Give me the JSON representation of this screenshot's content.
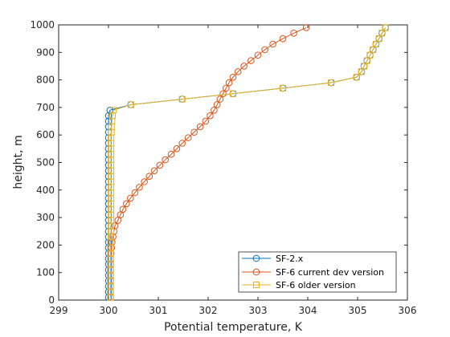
{
  "chart_data": {
    "type": "line",
    "title": "",
    "xlabel": "Potential temperature, K",
    "ylabel": "height, m",
    "xlim": [
      299,
      306
    ],
    "ylim": [
      0,
      1000
    ],
    "xticks": [
      299,
      300,
      301,
      302,
      303,
      304,
      305,
      306
    ],
    "yticks": [
      0,
      100,
      200,
      300,
      400,
      500,
      600,
      700,
      800,
      900,
      1000
    ],
    "grid": false,
    "legend_position": "bottom-right",
    "series": [
      {
        "name": "SF-2.x",
        "color": "#0072BD",
        "marker": "circle",
        "points": [
          [
            300.0,
            10
          ],
          [
            300.0,
            30
          ],
          [
            300.0,
            50
          ],
          [
            300.0,
            70
          ],
          [
            300.0,
            90
          ],
          [
            300.0,
            110
          ],
          [
            300.0,
            130
          ],
          [
            300.0,
            150
          ],
          [
            300.0,
            170
          ],
          [
            300.0,
            190
          ],
          [
            300.0,
            210
          ],
          [
            300.0,
            230
          ],
          [
            300.0,
            250
          ],
          [
            300.0,
            270
          ],
          [
            300.0,
            290
          ],
          [
            300.0,
            310
          ],
          [
            300.0,
            330
          ],
          [
            300.0,
            350
          ],
          [
            300.0,
            370
          ],
          [
            300.0,
            390
          ],
          [
            300.0,
            410
          ],
          [
            300.0,
            430
          ],
          [
            300.0,
            450
          ],
          [
            300.0,
            470
          ],
          [
            300.0,
            490
          ],
          [
            300.0,
            510
          ],
          [
            300.0,
            530
          ],
          [
            300.0,
            550
          ],
          [
            300.0,
            570
          ],
          [
            300.0,
            590
          ],
          [
            300.0,
            610
          ],
          [
            300.0,
            630
          ],
          [
            300.0,
            650
          ],
          [
            300.0,
            670
          ],
          [
            300.03,
            690
          ],
          [
            300.45,
            710
          ],
          [
            301.48,
            730
          ],
          [
            302.5,
            750
          ],
          [
            303.5,
            770
          ],
          [
            304.47,
            790
          ],
          [
            304.98,
            810
          ],
          [
            305.08,
            830
          ],
          [
            305.13,
            850
          ],
          [
            305.19,
            870
          ],
          [
            305.25,
            890
          ],
          [
            305.31,
            910
          ],
          [
            305.37,
            930
          ],
          [
            305.43,
            950
          ],
          [
            305.49,
            970
          ],
          [
            305.56,
            990
          ]
        ]
      },
      {
        "name": "SF-6 current dev version",
        "color": "#D95319",
        "marker": "circle",
        "points": [
          [
            300.04,
            10
          ],
          [
            300.04,
            30
          ],
          [
            300.04,
            50
          ],
          [
            300.04,
            70
          ],
          [
            300.04,
            90
          ],
          [
            300.04,
            110
          ],
          [
            300.04,
            130
          ],
          [
            300.04,
            150
          ],
          [
            300.05,
            170
          ],
          [
            300.06,
            190
          ],
          [
            300.07,
            210
          ],
          [
            300.09,
            230
          ],
          [
            300.11,
            250
          ],
          [
            300.13,
            270
          ],
          [
            300.19,
            290
          ],
          [
            300.24,
            310
          ],
          [
            300.29,
            330
          ],
          [
            300.36,
            350
          ],
          [
            300.44,
            370
          ],
          [
            300.53,
            390
          ],
          [
            300.62,
            410
          ],
          [
            300.72,
            430
          ],
          [
            300.82,
            450
          ],
          [
            300.92,
            470
          ],
          [
            301.03,
            490
          ],
          [
            301.14,
            510
          ],
          [
            301.26,
            530
          ],
          [
            301.37,
            550
          ],
          [
            301.48,
            570
          ],
          [
            301.6,
            590
          ],
          [
            301.72,
            610
          ],
          [
            301.84,
            630
          ],
          [
            301.95,
            650
          ],
          [
            302.04,
            670
          ],
          [
            302.12,
            690
          ],
          [
            302.18,
            710
          ],
          [
            302.24,
            730
          ],
          [
            302.3,
            750
          ],
          [
            302.36,
            770
          ],
          [
            302.42,
            790
          ],
          [
            302.5,
            810
          ],
          [
            302.6,
            830
          ],
          [
            302.72,
            850
          ],
          [
            302.86,
            870
          ],
          [
            303.0,
            890
          ],
          [
            303.14,
            910
          ],
          [
            303.3,
            930
          ],
          [
            303.5,
            950
          ],
          [
            303.72,
            970
          ],
          [
            303.97,
            990
          ]
        ]
      },
      {
        "name": "SF-6 older version",
        "color": "#EDB120",
        "marker": "square",
        "points": [
          [
            300.04,
            10
          ],
          [
            300.04,
            30
          ],
          [
            300.04,
            50
          ],
          [
            300.04,
            70
          ],
          [
            300.04,
            90
          ],
          [
            300.04,
            110
          ],
          [
            300.04,
            130
          ],
          [
            300.04,
            150
          ],
          [
            300.04,
            170
          ],
          [
            300.04,
            190
          ],
          [
            300.04,
            210
          ],
          [
            300.05,
            230
          ],
          [
            300.05,
            250
          ],
          [
            300.05,
            270
          ],
          [
            300.05,
            290
          ],
          [
            300.05,
            310
          ],
          [
            300.05,
            330
          ],
          [
            300.05,
            350
          ],
          [
            300.05,
            370
          ],
          [
            300.05,
            390
          ],
          [
            300.05,
            410
          ],
          [
            300.05,
            430
          ],
          [
            300.05,
            450
          ],
          [
            300.05,
            470
          ],
          [
            300.05,
            490
          ],
          [
            300.05,
            510
          ],
          [
            300.05,
            530
          ],
          [
            300.05,
            550
          ],
          [
            300.05,
            570
          ],
          [
            300.05,
            590
          ],
          [
            300.06,
            610
          ],
          [
            300.06,
            630
          ],
          [
            300.07,
            650
          ],
          [
            300.08,
            670
          ],
          [
            300.1,
            690
          ],
          [
            300.45,
            710
          ],
          [
            301.48,
            730
          ],
          [
            302.5,
            750
          ],
          [
            303.5,
            770
          ],
          [
            304.47,
            790
          ],
          [
            304.98,
            810
          ],
          [
            305.08,
            830
          ],
          [
            305.13,
            850
          ],
          [
            305.19,
            870
          ],
          [
            305.25,
            890
          ],
          [
            305.31,
            910
          ],
          [
            305.37,
            930
          ],
          [
            305.43,
            950
          ],
          [
            305.49,
            970
          ],
          [
            305.56,
            990
          ]
        ]
      }
    ]
  }
}
